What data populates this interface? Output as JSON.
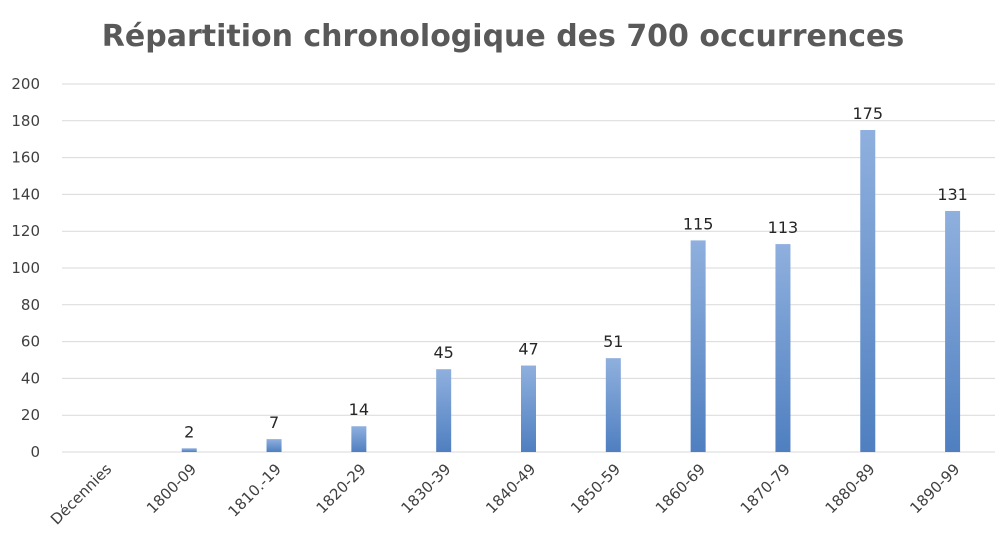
{
  "chart_data": {
    "type": "bar",
    "title": "Répartition chronologique des 700 occurrences",
    "xlabel": "",
    "ylabel": "",
    "categories": [
      "Décennies",
      "1800-09",
      "1810.-19",
      "1820-29",
      "1830-39",
      "1840-49",
      "1850-59",
      "1860-69",
      "1870-79",
      "1880-89",
      "1890-99"
    ],
    "values": [
      null,
      2,
      7,
      14,
      45,
      47,
      51,
      115,
      113,
      175,
      131
    ],
    "data_labels": [
      "",
      "2",
      "7",
      "14",
      "45",
      "47",
      "51",
      "115",
      "113",
      "175",
      "131"
    ],
    "ylim": [
      0,
      200
    ],
    "yticks": [
      "0",
      "20",
      "40",
      "60",
      "80",
      "100",
      "120",
      "140",
      "160",
      "180",
      "200"
    ],
    "grid": true,
    "legend": "none",
    "bar_color_top": "#8fb0de",
    "bar_color_bottom": "#4f7fc0"
  }
}
